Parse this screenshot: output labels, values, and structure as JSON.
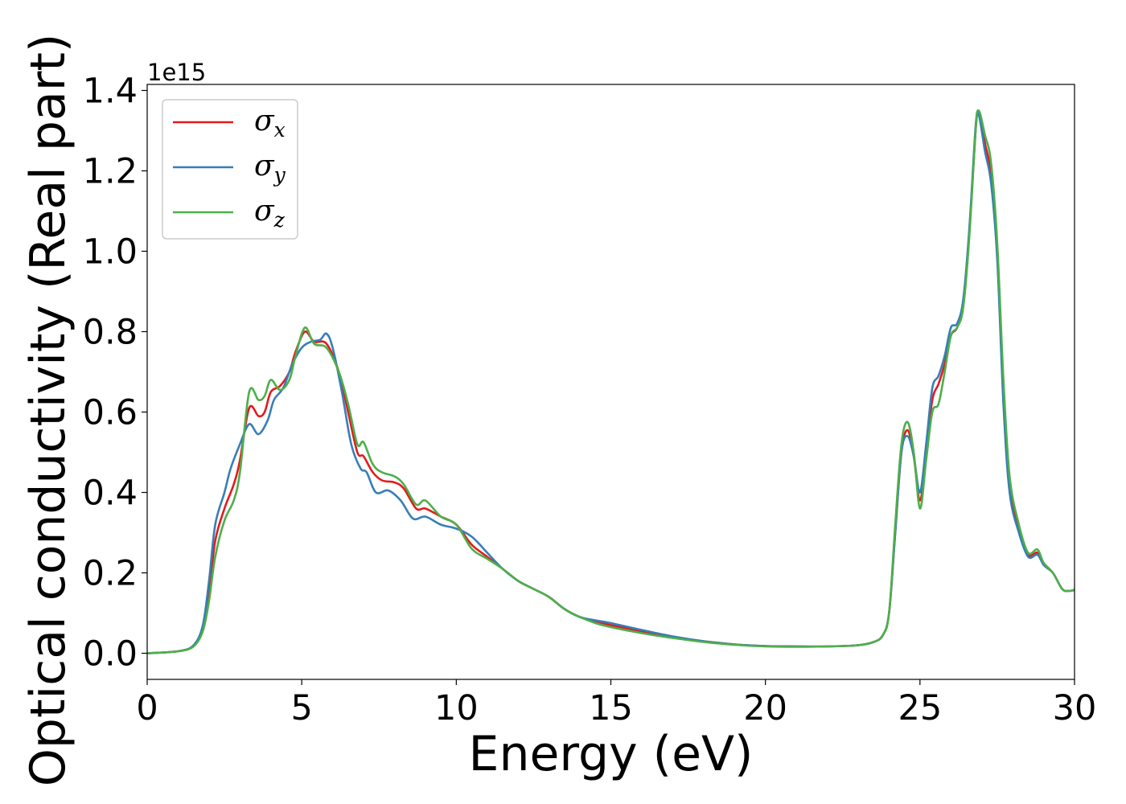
{
  "chart_data": {
    "type": "line",
    "title": "",
    "xlabel": "Energy (eV)",
    "ylabel": "Optical conductivity (Real part)",
    "y_offset_label": "1e15",
    "xlim": [
      0,
      30
    ],
    "ylim": [
      -0.065,
      1.415
    ],
    "x_ticks": [
      0,
      5,
      10,
      15,
      20,
      25,
      30
    ],
    "x_tick_labels": [
      "0",
      "5",
      "10",
      "15",
      "20",
      "25",
      "30"
    ],
    "y_ticks": [
      0.0,
      0.2,
      0.4,
      0.6,
      0.8,
      1.0,
      1.2,
      1.4
    ],
    "y_tick_labels": [
      "0.0",
      "0.2",
      "0.4",
      "0.6",
      "0.8",
      "1.0",
      "1.2",
      "1.4"
    ],
    "grid": false,
    "legend_position": "top-left",
    "series": [
      {
        "name": "σx",
        "legend_base": "σ",
        "legend_sub": "x",
        "color": "#e41a1c",
        "points": [
          [
            0,
            0.0
          ],
          [
            1,
            0.005
          ],
          [
            1.5,
            0.018
          ],
          [
            1.8,
            0.06
          ],
          [
            2.0,
            0.15
          ],
          [
            2.2,
            0.28
          ],
          [
            2.5,
            0.36
          ],
          [
            2.8,
            0.42
          ],
          [
            3.0,
            0.48
          ],
          [
            3.3,
            0.61
          ],
          [
            3.6,
            0.59
          ],
          [
            3.8,
            0.6
          ],
          [
            4.0,
            0.65
          ],
          [
            4.3,
            0.665
          ],
          [
            4.6,
            0.7
          ],
          [
            4.8,
            0.75
          ],
          [
            5.1,
            0.8
          ],
          [
            5.4,
            0.775
          ],
          [
            5.8,
            0.77
          ],
          [
            6.2,
            0.7
          ],
          [
            6.5,
            0.6
          ],
          [
            6.8,
            0.5
          ],
          [
            7.0,
            0.49
          ],
          [
            7.3,
            0.45
          ],
          [
            7.6,
            0.43
          ],
          [
            8.0,
            0.425
          ],
          [
            8.3,
            0.41
          ],
          [
            8.7,
            0.36
          ],
          [
            9.0,
            0.36
          ],
          [
            9.5,
            0.34
          ],
          [
            10.0,
            0.32
          ],
          [
            10.5,
            0.27
          ],
          [
            11.0,
            0.24
          ],
          [
            11.5,
            0.21
          ],
          [
            12.0,
            0.18
          ],
          [
            12.5,
            0.16
          ],
          [
            13.0,
            0.14
          ],
          [
            13.5,
            0.11
          ],
          [
            14.0,
            0.09
          ],
          [
            14.5,
            0.08
          ],
          [
            15.0,
            0.07
          ],
          [
            16.0,
            0.055
          ],
          [
            17.0,
            0.04
          ],
          [
            18.0,
            0.03
          ],
          [
            19.0,
            0.022
          ],
          [
            20.0,
            0.018
          ],
          [
            21.0,
            0.017
          ],
          [
            22.0,
            0.017
          ],
          [
            23.0,
            0.02
          ],
          [
            23.5,
            0.028
          ],
          [
            23.8,
            0.045
          ],
          [
            24.0,
            0.1
          ],
          [
            24.2,
            0.3
          ],
          [
            24.4,
            0.5
          ],
          [
            24.6,
            0.555
          ],
          [
            24.8,
            0.49
          ],
          [
            25.0,
            0.38
          ],
          [
            25.2,
            0.5
          ],
          [
            25.4,
            0.63
          ],
          [
            25.6,
            0.67
          ],
          [
            25.8,
            0.72
          ],
          [
            26.0,
            0.79
          ],
          [
            26.2,
            0.81
          ],
          [
            26.4,
            0.87
          ],
          [
            26.6,
            1.05
          ],
          [
            26.8,
            1.3
          ],
          [
            26.9,
            1.345
          ],
          [
            27.1,
            1.27
          ],
          [
            27.3,
            1.19
          ],
          [
            27.5,
            1.0
          ],
          [
            27.7,
            0.65
          ],
          [
            27.9,
            0.42
          ],
          [
            28.2,
            0.31
          ],
          [
            28.5,
            0.245
          ],
          [
            28.8,
            0.25
          ],
          [
            29.0,
            0.22
          ],
          [
            29.3,
            0.2
          ],
          [
            29.6,
            0.16
          ],
          [
            29.8,
            0.155
          ],
          [
            30,
            0.158
          ]
        ]
      },
      {
        "name": "σy",
        "legend_base": "σ",
        "legend_sub": "y",
        "color": "#377eb8",
        "points": [
          [
            0,
            0.0
          ],
          [
            1,
            0.005
          ],
          [
            1.5,
            0.02
          ],
          [
            1.8,
            0.07
          ],
          [
            2.0,
            0.18
          ],
          [
            2.2,
            0.32
          ],
          [
            2.5,
            0.4
          ],
          [
            2.7,
            0.46
          ],
          [
            3.0,
            0.52
          ],
          [
            3.3,
            0.57
          ],
          [
            3.6,
            0.545
          ],
          [
            3.9,
            0.58
          ],
          [
            4.1,
            0.63
          ],
          [
            4.4,
            0.66
          ],
          [
            4.7,
            0.72
          ],
          [
            5.0,
            0.76
          ],
          [
            5.3,
            0.775
          ],
          [
            5.6,
            0.78
          ],
          [
            5.8,
            0.795
          ],
          [
            6.0,
            0.76
          ],
          [
            6.3,
            0.65
          ],
          [
            6.6,
            0.52
          ],
          [
            6.9,
            0.46
          ],
          [
            7.1,
            0.45
          ],
          [
            7.4,
            0.4
          ],
          [
            7.8,
            0.405
          ],
          [
            8.2,
            0.38
          ],
          [
            8.6,
            0.335
          ],
          [
            9.0,
            0.34
          ],
          [
            9.5,
            0.32
          ],
          [
            10.0,
            0.31
          ],
          [
            10.5,
            0.29
          ],
          [
            11.0,
            0.25
          ],
          [
            11.5,
            0.21
          ],
          [
            12.0,
            0.18
          ],
          [
            12.5,
            0.16
          ],
          [
            13.0,
            0.14
          ],
          [
            13.5,
            0.11
          ],
          [
            14.0,
            0.09
          ],
          [
            14.5,
            0.082
          ],
          [
            15.0,
            0.075
          ],
          [
            16.0,
            0.058
          ],
          [
            17.0,
            0.042
          ],
          [
            18.0,
            0.03
          ],
          [
            19.0,
            0.022
          ],
          [
            20.0,
            0.018
          ],
          [
            21.0,
            0.017
          ],
          [
            22.0,
            0.017
          ],
          [
            23.0,
            0.02
          ],
          [
            23.5,
            0.028
          ],
          [
            23.8,
            0.045
          ],
          [
            24.0,
            0.1
          ],
          [
            24.2,
            0.3
          ],
          [
            24.4,
            0.5
          ],
          [
            24.6,
            0.54
          ],
          [
            24.8,
            0.49
          ],
          [
            25.0,
            0.4
          ],
          [
            25.2,
            0.52
          ],
          [
            25.4,
            0.66
          ],
          [
            25.6,
            0.69
          ],
          [
            25.8,
            0.74
          ],
          [
            26.0,
            0.81
          ],
          [
            26.2,
            0.82
          ],
          [
            26.4,
            0.88
          ],
          [
            26.6,
            1.06
          ],
          [
            26.8,
            1.31
          ],
          [
            26.9,
            1.34
          ],
          [
            27.1,
            1.25
          ],
          [
            27.3,
            1.17
          ],
          [
            27.5,
            0.98
          ],
          [
            27.7,
            0.62
          ],
          [
            27.9,
            0.4
          ],
          [
            28.2,
            0.3
          ],
          [
            28.5,
            0.24
          ],
          [
            28.8,
            0.245
          ],
          [
            29.0,
            0.22
          ],
          [
            29.3,
            0.2
          ],
          [
            29.6,
            0.16
          ],
          [
            29.8,
            0.155
          ],
          [
            30,
            0.157
          ]
        ]
      },
      {
        "name": "σz",
        "legend_base": "σ",
        "legend_sub": "z",
        "color": "#4daf4a",
        "points": [
          [
            0,
            0.0
          ],
          [
            1,
            0.005
          ],
          [
            1.5,
            0.017
          ],
          [
            1.8,
            0.055
          ],
          [
            2.0,
            0.13
          ],
          [
            2.2,
            0.24
          ],
          [
            2.5,
            0.33
          ],
          [
            2.8,
            0.38
          ],
          [
            3.0,
            0.45
          ],
          [
            3.3,
            0.65
          ],
          [
            3.6,
            0.63
          ],
          [
            3.8,
            0.64
          ],
          [
            4.0,
            0.68
          ],
          [
            4.3,
            0.655
          ],
          [
            4.6,
            0.68
          ],
          [
            4.8,
            0.74
          ],
          [
            5.1,
            0.81
          ],
          [
            5.4,
            0.77
          ],
          [
            5.8,
            0.76
          ],
          [
            6.2,
            0.7
          ],
          [
            6.5,
            0.62
          ],
          [
            6.8,
            0.52
          ],
          [
            7.0,
            0.525
          ],
          [
            7.3,
            0.47
          ],
          [
            7.6,
            0.45
          ],
          [
            8.0,
            0.44
          ],
          [
            8.3,
            0.42
          ],
          [
            8.7,
            0.37
          ],
          [
            9.0,
            0.38
          ],
          [
            9.5,
            0.34
          ],
          [
            10.0,
            0.32
          ],
          [
            10.5,
            0.26
          ],
          [
            11.0,
            0.235
          ],
          [
            11.5,
            0.21
          ],
          [
            12.0,
            0.18
          ],
          [
            12.5,
            0.16
          ],
          [
            13.0,
            0.14
          ],
          [
            13.5,
            0.11
          ],
          [
            14.0,
            0.09
          ],
          [
            14.5,
            0.075
          ],
          [
            15.0,
            0.065
          ],
          [
            16.0,
            0.05
          ],
          [
            17.0,
            0.038
          ],
          [
            18.0,
            0.028
          ],
          [
            19.0,
            0.021
          ],
          [
            20.0,
            0.017
          ],
          [
            21.0,
            0.016
          ],
          [
            22.0,
            0.017
          ],
          [
            23.0,
            0.02
          ],
          [
            23.5,
            0.028
          ],
          [
            23.8,
            0.045
          ],
          [
            24.0,
            0.1
          ],
          [
            24.2,
            0.32
          ],
          [
            24.4,
            0.52
          ],
          [
            24.6,
            0.575
          ],
          [
            24.8,
            0.5
          ],
          [
            25.0,
            0.36
          ],
          [
            25.2,
            0.48
          ],
          [
            25.4,
            0.6
          ],
          [
            25.6,
            0.62
          ],
          [
            25.8,
            0.7
          ],
          [
            26.0,
            0.79
          ],
          [
            26.2,
            0.81
          ],
          [
            26.4,
            0.86
          ],
          [
            26.6,
            1.04
          ],
          [
            26.8,
            1.3
          ],
          [
            26.9,
            1.35
          ],
          [
            27.1,
            1.29
          ],
          [
            27.3,
            1.22
          ],
          [
            27.5,
            1.02
          ],
          [
            27.7,
            0.68
          ],
          [
            27.9,
            0.44
          ],
          [
            28.2,
            0.32
          ],
          [
            28.5,
            0.25
          ],
          [
            28.8,
            0.258
          ],
          [
            29.0,
            0.225
          ],
          [
            29.3,
            0.2
          ],
          [
            29.6,
            0.16
          ],
          [
            29.8,
            0.155
          ],
          [
            30,
            0.158
          ]
        ]
      }
    ]
  }
}
